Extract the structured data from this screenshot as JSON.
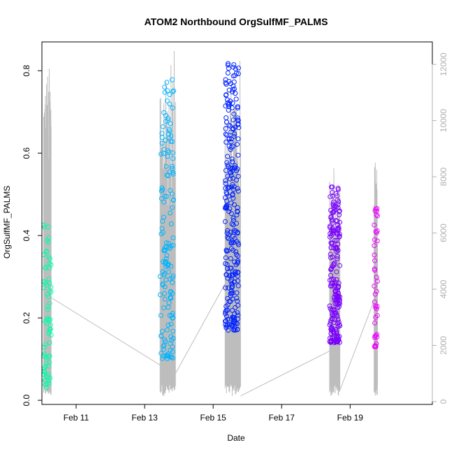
{
  "chart_data": {
    "type": "scatter",
    "title": "ATOM2 Northbound OrgSulfMF_PALMS",
    "xlabel": "Date",
    "ylabel": "OrgSulfMF_PALMS",
    "x_unit": "days in February",
    "xlim": [
      10.0,
      21.4
    ],
    "ylim": [
      -0.01,
      0.87
    ],
    "y2lim": [
      -100,
      12800
    ],
    "x_ticks": [
      11,
      13,
      15,
      17,
      19
    ],
    "x_tick_labels": [
      "Feb 11",
      "Feb 13",
      "Feb 15",
      "Feb 17",
      "Feb 19"
    ],
    "y_ticks": [
      0.0,
      0.2,
      0.4,
      0.6,
      0.8
    ],
    "y_tick_labels": [
      "0.0",
      "0.2",
      "0.4",
      "0.6",
      "0.8"
    ],
    "y2_ticks": [
      0,
      2000,
      4000,
      6000,
      8000,
      10000,
      12000
    ],
    "y2_tick_labels": [
      "0",
      "2000",
      "4000",
      "6000",
      "8000",
      "10000",
      "12000"
    ],
    "altitude_color": "#bdbdbd",
    "grid": false,
    "flights": [
      {
        "color": "#00ffaa",
        "x_range": [
          10.05,
          10.27
        ],
        "y_min": 0.03,
        "y_max": 0.43,
        "n": 70,
        "altitude_segments": [
          [
            10.05,
            10.27
          ]
        ],
        "altitude_max": 12000
      },
      {
        "color": "#00b4ff",
        "x_range": [
          13.45,
          13.85
        ],
        "y_min": 0.1,
        "y_max": 0.78,
        "n": 150,
        "altitude_segments": [
          [
            13.45,
            13.9
          ]
        ],
        "altitude_max": 12500
      },
      {
        "color": "#0022ff",
        "x_range": [
          15.35,
          15.75
        ],
        "y_min": 0.17,
        "y_max": 0.84,
        "n": 260,
        "altitude_segments": [
          [
            15.35,
            15.8
          ]
        ],
        "altitude_max": 12300
      },
      {
        "color": "#7a00ff",
        "x_range": [
          18.4,
          18.7
        ],
        "y_min": 0.14,
        "y_max": 0.52,
        "n": 200,
        "altitude_segments": [
          [
            18.4,
            18.7
          ]
        ],
        "altitude_max": 8600
      },
      {
        "color": "#ee00ff",
        "x_range": [
          19.7,
          19.8
        ],
        "y_min": 0.13,
        "y_max": 0.48,
        "n": 40,
        "altitude_segments": [
          [
            19.7,
            19.8
          ]
        ],
        "altitude_max": 8600
      }
    ],
    "altitude_transits": [
      [
        [
          10.27,
          3700
        ],
        [
          13.45,
          1300
        ]
      ],
      [
        [
          13.9,
          1000
        ],
        [
          15.35,
          4200
        ]
      ],
      [
        [
          15.8,
          200
        ],
        [
          18.4,
          1800
        ]
      ],
      [
        [
          18.7,
          400
        ],
        [
          19.7,
          3600
        ]
      ]
    ]
  }
}
